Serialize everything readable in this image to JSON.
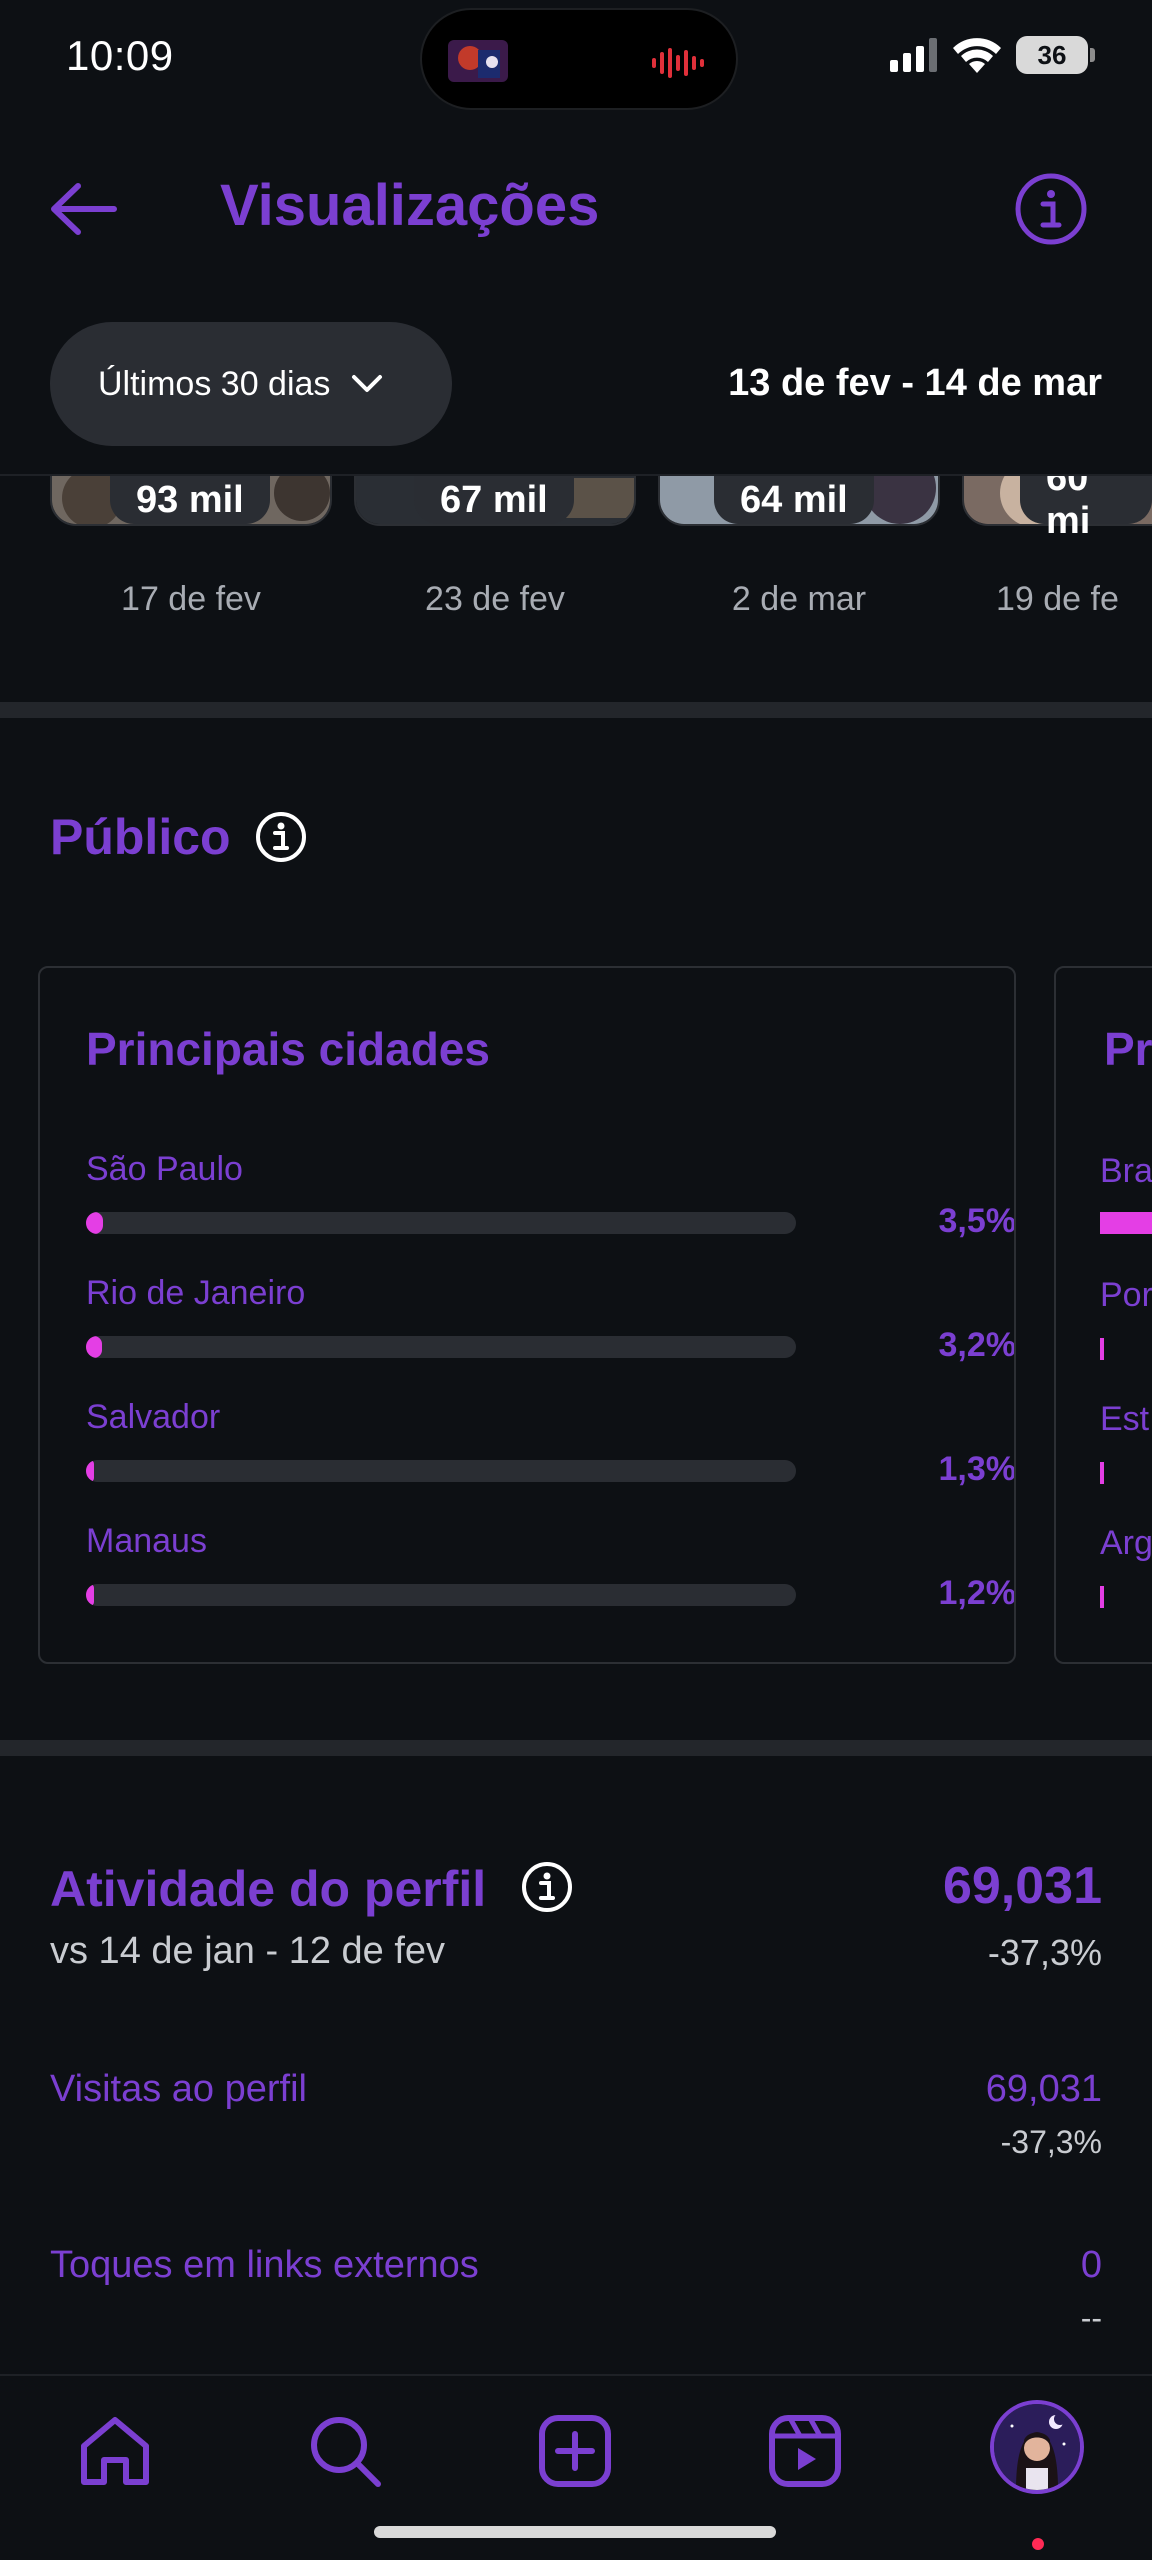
{
  "status_bar": {
    "time": "10:09",
    "battery": "36",
    "icons": [
      "signal-icon",
      "wifi-icon",
      "battery-icon"
    ]
  },
  "header": {
    "title": "Visualizações",
    "back_icon": "arrow-left-icon",
    "info_icon": "info-icon"
  },
  "filter": {
    "range_label": "Últimos 30 dias",
    "date_range": "13 de fev - 14 de mar"
  },
  "top_posts": [
    {
      "count": "93 mil",
      "date": "17 de fev"
    },
    {
      "count": "67 mil",
      "date": "23 de fev"
    },
    {
      "count": "64 mil",
      "date": "2 de mar"
    },
    {
      "count": "60 mi",
      "date": "19 de fe"
    }
  ],
  "audience": {
    "title": "Público",
    "cities_card": {
      "title": "Principais cidades",
      "items": [
        {
          "name": "São Paulo",
          "pct_label": "3,5%",
          "pct": 3.5
        },
        {
          "name": "Rio de Janeiro",
          "pct_label": "3,2%",
          "pct": 3.2
        },
        {
          "name": "Salvador",
          "pct_label": "1,3%",
          "pct": 1.3
        },
        {
          "name": "Manaus",
          "pct_label": "1,2%",
          "pct": 1.2
        }
      ]
    },
    "countries_card": {
      "title": "Pr",
      "items": [
        "Bra",
        "Por",
        "Est",
        "Arg"
      ]
    }
  },
  "profile_activity": {
    "title": "Atividade do perfil",
    "comparison": "vs 14 de jan - 12 de fev",
    "value": "69,031",
    "change": "-37,3%",
    "metrics": [
      {
        "label": "Visitas ao perfil",
        "value": "69,031",
        "change": "-37,3%"
      },
      {
        "label": "Toques em links externos",
        "value": "0",
        "change": "--"
      }
    ]
  },
  "colors": {
    "accent": "#7b3fd1",
    "bar": "#e43ee5",
    "background": "#0d1014"
  },
  "bottom_nav": [
    "home-icon",
    "search-icon",
    "create-icon",
    "reels-icon",
    "profile-avatar"
  ]
}
